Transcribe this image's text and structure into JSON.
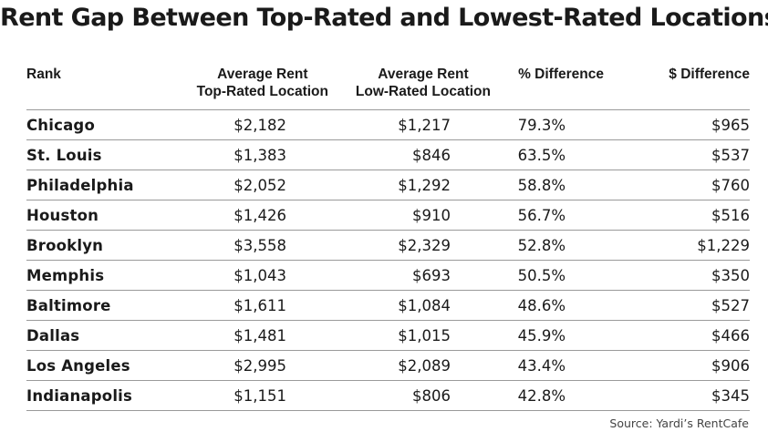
{
  "title": "Rent Gap Between Top-Rated and Lowest-Rated Locations",
  "source": "Source: Yardi’s RentCafe",
  "chart_data": {
    "type": "table",
    "title": "Rent Gap Between Top-Rated and Lowest-Rated Locations",
    "columns": [
      {
        "line1": "Rank",
        "line2": ""
      },
      {
        "line1": "Average Rent",
        "line2": "Top-Rated Location"
      },
      {
        "line1": "Average Rent",
        "line2": "Low-Rated Location"
      },
      {
        "line1": "% Difference",
        "line2": ""
      },
      {
        "line1": "$ Difference",
        "line2": ""
      }
    ],
    "rows": [
      {
        "city": "Chicago",
        "top": "$2,182",
        "low": "$1,217",
        "pct": "79.3%",
        "diff": "$965"
      },
      {
        "city": "St. Louis",
        "top": "$1,383",
        "low": "$846",
        "pct": "63.5%",
        "diff": "$537"
      },
      {
        "city": "Philadelphia",
        "top": "$2,052",
        "low": "$1,292",
        "pct": "58.8%",
        "diff": "$760"
      },
      {
        "city": "Houston",
        "top": "$1,426",
        "low": "$910",
        "pct": "56.7%",
        "diff": "$516"
      },
      {
        "city": "Brooklyn",
        "top": "$3,558",
        "low": "$2,329",
        "pct": "52.8%",
        "diff": "$1,229"
      },
      {
        "city": "Memphis",
        "top": "$1,043",
        "low": "$693",
        "pct": "50.5%",
        "diff": "$350"
      },
      {
        "city": "Baltimore",
        "top": "$1,611",
        "low": "$1,084",
        "pct": "48.6%",
        "diff": "$527"
      },
      {
        "city": "Dallas",
        "top": "$1,481",
        "low": "$1,015",
        "pct": "45.9%",
        "diff": "$466"
      },
      {
        "city": "Los Angeles",
        "top": "$2,995",
        "low": "$2,089",
        "pct": "43.4%",
        "diff": "$906"
      },
      {
        "city": "Indianapolis",
        "top": "$1,151",
        "low": "$806",
        "pct": "42.8%",
        "diff": "$345"
      }
    ]
  }
}
